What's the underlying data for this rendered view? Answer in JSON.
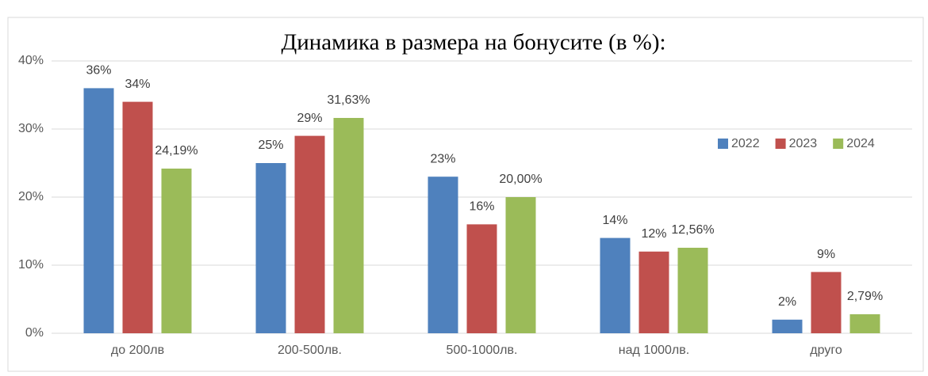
{
  "chart_data": {
    "type": "bar",
    "title": "Динамика в размера на бонусите (в %):",
    "categories": [
      "до 200лв",
      "200-500лв.",
      "500-1000лв.",
      "над 1000лв.",
      "друго"
    ],
    "series": [
      {
        "name": "2022",
        "color": "#4f81bd",
        "values": [
          36,
          25,
          23,
          14,
          2
        ],
        "value_labels": [
          "36%",
          "25%",
          "23%",
          "14%",
          "2%"
        ]
      },
      {
        "name": "2023",
        "color": "#c0504d",
        "values": [
          34,
          29,
          16,
          12,
          9
        ],
        "value_labels": [
          "34%",
          "29%",
          "16%",
          "12%",
          "9%"
        ]
      },
      {
        "name": "2024",
        "color": "#9bbb59",
        "values": [
          24.19,
          31.63,
          20,
          12.56,
          2.79
        ],
        "value_labels": [
          "24,19%",
          "31,63%",
          "20,00%",
          "12,56%",
          "2,79%"
        ]
      }
    ],
    "ylim": [
      0,
      40
    ],
    "yticks": [
      {
        "value": 0,
        "label": "0%"
      },
      {
        "value": 10,
        "label": "10%"
      },
      {
        "value": 20,
        "label": "20%"
      },
      {
        "value": 30,
        "label": "30%"
      },
      {
        "value": 40,
        "label": "40%"
      }
    ],
    "grid": true
  }
}
